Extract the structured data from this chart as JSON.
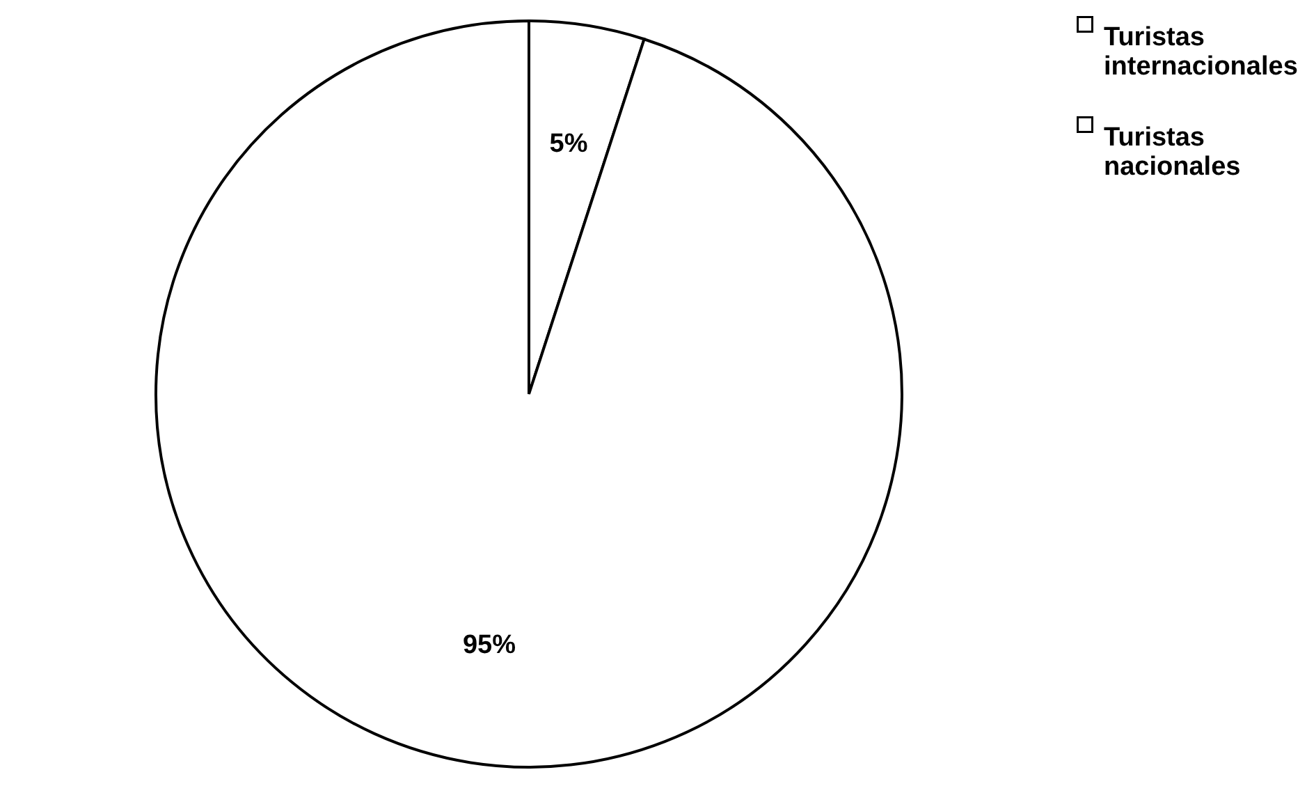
{
  "chart_data": {
    "type": "pie",
    "categories": [
      "Turistas internacionales",
      "Turistas nacionales"
    ],
    "values": [
      5,
      95
    ],
    "colors": [
      "#ffffff",
      "#ffffff"
    ],
    "value_labels": [
      "5%",
      "95%"
    ],
    "legend": "right"
  }
}
